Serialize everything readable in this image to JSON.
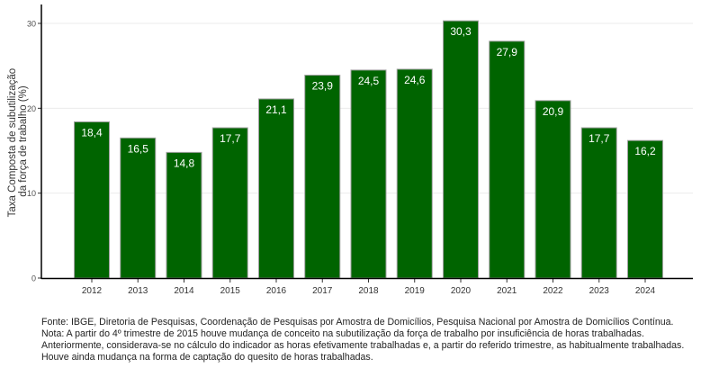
{
  "chart_data": {
    "type": "bar",
    "categories": [
      "2012",
      "2013",
      "2014",
      "2015",
      "2016",
      "2017",
      "2018",
      "2019",
      "2020",
      "2021",
      "2022",
      "2023",
      "2024"
    ],
    "values": [
      18.4,
      16.5,
      14.8,
      17.7,
      21.1,
      23.9,
      24.5,
      24.6,
      30.3,
      27.9,
      20.9,
      17.7,
      16.2
    ],
    "data_labels": [
      "18,4",
      "16,5",
      "14,8",
      "17,7",
      "21,1",
      "23,9",
      "24,5",
      "24,6",
      "30,3",
      "27,9",
      "20,9",
      "17,7",
      "16,2"
    ],
    "title": "",
    "xlabel": "",
    "ylabel_lines": [
      "Taxa Composta de subutilização",
      "da força de trabalho (%)"
    ],
    "ylim": [
      0,
      32
    ],
    "yticks": [
      "0",
      "10",
      "20",
      "30"
    ],
    "grid": "horizontal major",
    "bar_color": "#006400",
    "label_color": "#ffffff"
  },
  "footnote": {
    "lines": [
      "Fonte: IBGE, Diretoria de Pesquisas, Coordenação de Pesquisas por Amostra de Domicílios, Pesquisa Nacional por Amostra de Domicílios Contínua.",
      "Nota: A partir do 4º trimestre de 2015 houve mudança de conceito na subutilização da força de trabalho por insuficiência de horas trabalhadas.",
      "Anteriormente, considerava-se no cálculo do indicador as horas efetivamente trabalhadas e, a partir do referido trimestre, as habitualmente trabalhadas.",
      "Houve ainda mudança na forma de captação do quesito de horas trabalhadas."
    ]
  }
}
